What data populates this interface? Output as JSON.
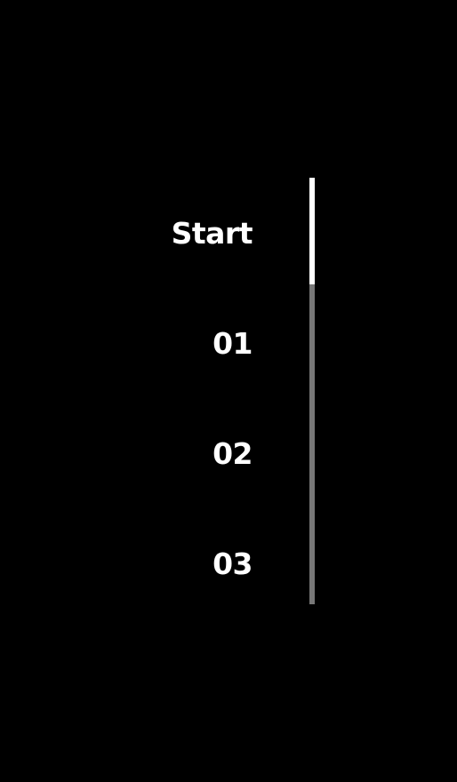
{
  "steps": [
    {
      "label": "Start"
    },
    {
      "label": "01"
    },
    {
      "label": "02"
    },
    {
      "label": "03"
    }
  ],
  "progress": {
    "active_index": 0,
    "fraction": 0.25,
    "fill_color": "#ffffff",
    "track_color": "#777777"
  },
  "colors": {
    "background": "#000000",
    "text": "#ffffff"
  }
}
